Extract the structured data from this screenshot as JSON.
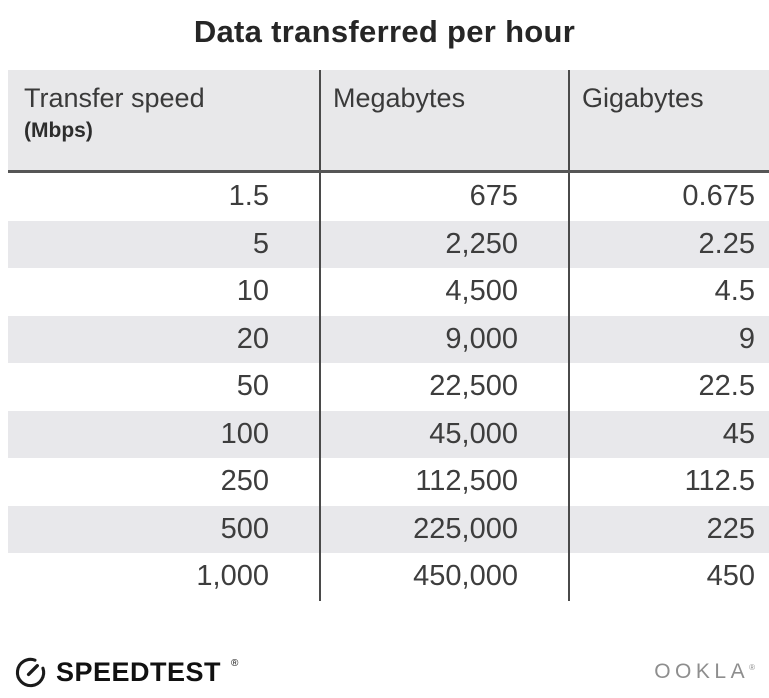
{
  "title": "Data transferred per hour",
  "colors": {
    "header_bg": "#e8e8ea",
    "stripe_bg": "#e8e8eb",
    "header_border": "#565656",
    "column_divider": "#4a4a4a",
    "title_text": "#262626",
    "cell_text": "#3d3d3d",
    "speedtest_black": "#111111",
    "ookla_gray": "#8e8e8e"
  },
  "table": {
    "columns": [
      {
        "title": "Transfer speed",
        "subtitle": "(Mbps)"
      },
      {
        "title": "Megabytes"
      },
      {
        "title": "Gigabytes"
      }
    ],
    "rows": [
      [
        "1.5",
        "675",
        "0.675"
      ],
      [
        "5",
        "2,250",
        "2.25"
      ],
      [
        "10",
        "4,500",
        "4.5"
      ],
      [
        "20",
        "9,000",
        "9"
      ],
      [
        "50",
        "22,500",
        "22.5"
      ],
      [
        "100",
        "45,000",
        "45"
      ],
      [
        "250",
        "112,500",
        "112.5"
      ],
      [
        "500",
        "225,000",
        "225"
      ],
      [
        "1,000",
        "450,000",
        "450"
      ]
    ]
  },
  "footer": {
    "speedtest_label": "SPEEDTEST",
    "speedtest_trademark": "®",
    "ookla_label": "OOKLA",
    "ookla_trademark": "®"
  },
  "chart_data": {
    "type": "table",
    "title": "Data transferred per hour",
    "columns": [
      "Transfer speed (Mbps)",
      "Megabytes",
      "Gigabytes"
    ],
    "rows": [
      [
        1.5,
        675,
        0.675
      ],
      [
        5,
        2250,
        2.25
      ],
      [
        10,
        4500,
        4.5
      ],
      [
        20,
        9000,
        9
      ],
      [
        50,
        22500,
        22.5
      ],
      [
        100,
        45000,
        45
      ],
      [
        250,
        112500,
        112.5
      ],
      [
        500,
        225000,
        225
      ],
      [
        1000,
        450000,
        450
      ]
    ]
  }
}
